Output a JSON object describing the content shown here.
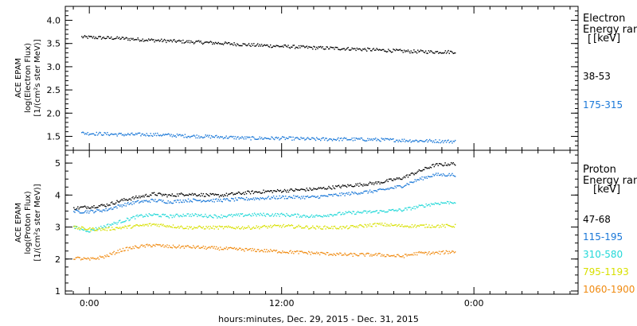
{
  "xlabel": "hours:minutes, Dec. 29, 2015 - Dec. 31, 2015",
  "x_ticks": [
    "0:00",
    "12:00",
    "0:00"
  ],
  "colors": {
    "black": "#000000",
    "blue": "#1a78d8",
    "cyan": "#22d8d8",
    "yellow": "#d8e000",
    "orange": "#f08a10"
  },
  "panels": {
    "electron": {
      "ylabel_lines": [
        "ACE EPAM",
        "log(Electron Flux)",
        "[1/(cm²s ster MeV)]"
      ],
      "yticks": [
        "1.5",
        "2.0",
        "2.5",
        "3.0",
        "3.5",
        "4.0"
      ],
      "legend_title_1": "Electron",
      "legend_title_2": "Energy ranges",
      "legend_unit": "[keV]",
      "channels": [
        "38-53",
        "175-315"
      ]
    },
    "proton": {
      "ylabel_lines": [
        "ACE EPAM",
        "log(Proton Flux)",
        "[1/(cm²s ster MeV)]"
      ],
      "yticks": [
        "1",
        "2",
        "3",
        "4",
        "5"
      ],
      "legend_title_1": "Proton",
      "legend_title_2": "Energy ranges",
      "legend_unit": "[keV]",
      "channels": [
        "47-68",
        "115-195",
        "310-580",
        "795-1193",
        "1060-1900"
      ]
    }
  },
  "chart_data": [
    {
      "type": "scatter",
      "title": "",
      "ylabel": "ACE EPAM log(Electron Flux) [1/(cm²s ster MeV)]",
      "xlabel": "hours:minutes, Dec. 29, 2015 - Dec. 31, 2015",
      "xlim_hours": [
        -1.5,
        30.5
      ],
      "ylim": [
        1.2,
        4.3
      ],
      "legend": "right",
      "series": [
        {
          "name": "38-53",
          "color": "#000000",
          "x": [
            -0.5,
            2,
            4,
            6,
            8,
            10,
            12,
            14,
            16,
            18,
            20,
            21.5,
            22.8
          ],
          "values": [
            3.65,
            3.62,
            3.58,
            3.55,
            3.52,
            3.48,
            3.45,
            3.42,
            3.4,
            3.37,
            3.34,
            3.33,
            3.33
          ]
        },
        {
          "name": "175-315",
          "color": "#1a78d8",
          "x": [
            -0.5,
            2,
            4,
            6,
            8,
            10,
            12,
            14,
            16,
            18,
            20,
            21.5,
            22.8
          ],
          "values": [
            1.58,
            1.55,
            1.55,
            1.52,
            1.5,
            1.47,
            1.47,
            1.45,
            1.45,
            1.44,
            1.42,
            1.41,
            1.4
          ]
        }
      ]
    },
    {
      "type": "scatter",
      "title": "",
      "ylabel": "ACE EPAM log(Proton Flux) [1/(cm²s ster MeV)]",
      "xlabel": "hours:minutes, Dec. 29, 2015 - Dec. 31, 2015",
      "xlim_hours": [
        -1.5,
        30.5
      ],
      "ylim": [
        0.9,
        5.4
      ],
      "legend": "right",
      "series": [
        {
          "name": "47-68",
          "color": "#000000",
          "x": [
            -1,
            0,
            1,
            2,
            3,
            4,
            5,
            6,
            8,
            10,
            12,
            14,
            16,
            18,
            19.5,
            20.5,
            21.5,
            22.8
          ],
          "values": [
            3.6,
            3.65,
            3.7,
            3.85,
            3.95,
            4.05,
            4.0,
            4.05,
            4.0,
            4.1,
            4.15,
            4.2,
            4.3,
            4.4,
            4.55,
            4.75,
            4.95,
            5.0
          ]
        },
        {
          "name": "115-195",
          "color": "#1a78d8",
          "x": [
            -1,
            0,
            1,
            2,
            3,
            4,
            5,
            6,
            8,
            10,
            12,
            14,
            16,
            18,
            19.5,
            20.5,
            21.5,
            22.8
          ],
          "values": [
            3.5,
            3.5,
            3.55,
            3.7,
            3.8,
            3.85,
            3.8,
            3.85,
            3.85,
            3.9,
            3.95,
            3.95,
            4.05,
            4.15,
            4.3,
            4.5,
            4.65,
            4.65
          ]
        },
        {
          "name": "310-580",
          "color": "#22d8d8",
          "x": [
            -1,
            0,
            1,
            2,
            3,
            4,
            5,
            6,
            8,
            10,
            12,
            14,
            16,
            18,
            19.5,
            20.5,
            21.5,
            22.8
          ],
          "values": [
            3.0,
            2.9,
            3.05,
            3.2,
            3.35,
            3.4,
            3.35,
            3.4,
            3.35,
            3.4,
            3.4,
            3.35,
            3.45,
            3.5,
            3.55,
            3.65,
            3.75,
            3.8
          ]
        },
        {
          "name": "795-1193",
          "color": "#d8e000",
          "x": [
            -1,
            0,
            1,
            2,
            3,
            4,
            5,
            6,
            8,
            10,
            12,
            14,
            16,
            18,
            19.5,
            20.5,
            21.5,
            22.8
          ],
          "values": [
            3.0,
            2.95,
            2.95,
            3.0,
            3.05,
            3.1,
            3.05,
            3.0,
            3.0,
            3.0,
            3.05,
            3.0,
            3.0,
            3.1,
            3.05,
            3.05,
            3.05,
            3.05
          ]
        },
        {
          "name": "1060-1900",
          "color": "#f08a10",
          "x": [
            -1,
            0,
            1,
            2,
            3,
            4,
            5,
            6,
            8,
            10,
            12,
            14,
            16,
            18,
            19.5,
            20.5,
            21.5,
            22.8
          ],
          "values": [
            2.05,
            2.0,
            2.1,
            2.3,
            2.4,
            2.45,
            2.4,
            2.4,
            2.35,
            2.3,
            2.25,
            2.2,
            2.15,
            2.15,
            2.1,
            2.2,
            2.2,
            2.25
          ]
        }
      ]
    }
  ]
}
